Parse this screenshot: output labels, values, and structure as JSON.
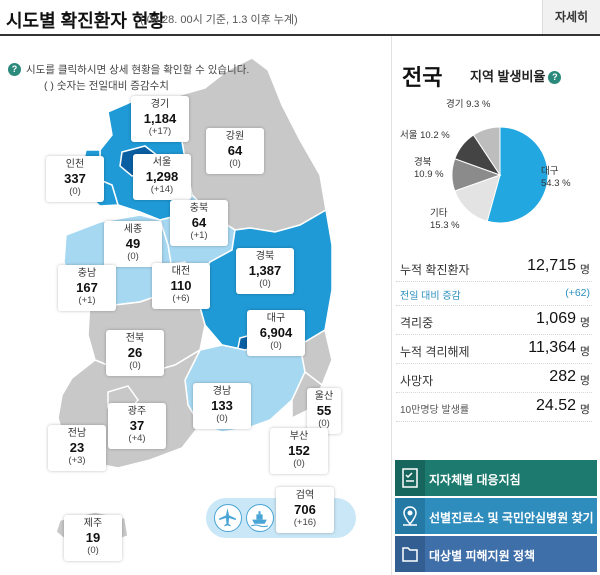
{
  "header": {
    "title": "시도별 확진환자 현황",
    "subtitle": "( 06.28. 00시 기준, 1.3 이후 누계)",
    "more_label": "자세히"
  },
  "notice": {
    "icon": "question-icon",
    "line1": "시도를 클릭하시면 상세 현황을 확인할 수 있습니다.",
    "line2": "( ) 숫자는 전일대비 증감수치"
  },
  "regions": [
    {
      "name": "경기",
      "count": "1,184",
      "delta": "(+17)"
    },
    {
      "name": "강원",
      "count": "64",
      "delta": "(0)"
    },
    {
      "name": "인천",
      "count": "337",
      "delta": "(0)"
    },
    {
      "name": "서울",
      "count": "1,298",
      "delta": "(+14)"
    },
    {
      "name": "충북",
      "count": "64",
      "delta": "(+1)"
    },
    {
      "name": "세종",
      "count": "49",
      "delta": "(0)"
    },
    {
      "name": "경북",
      "count": "1,387",
      "delta": "(0)"
    },
    {
      "name": "충남",
      "count": "167",
      "delta": "(+1)"
    },
    {
      "name": "대전",
      "count": "110",
      "delta": "(+6)"
    },
    {
      "name": "대구",
      "count": "6,904",
      "delta": "(0)"
    },
    {
      "name": "전북",
      "count": "26",
      "delta": "(0)"
    },
    {
      "name": "경남",
      "count": "133",
      "delta": "(0)"
    },
    {
      "name": "울산",
      "count": "55",
      "delta": "(0)"
    },
    {
      "name": "광주",
      "count": "37",
      "delta": "(+4)"
    },
    {
      "name": "부산",
      "count": "152",
      "delta": "(0)"
    },
    {
      "name": "전남",
      "count": "23",
      "delta": "(+3)"
    },
    {
      "name": "검역",
      "count": "706",
      "delta": "(+16)"
    },
    {
      "name": "제주",
      "count": "19",
      "delta": "(0)"
    }
  ],
  "quarantine_icons": [
    "airplane-icon",
    "ship-icon"
  ],
  "national": {
    "title": "전국",
    "ratio_title": "지역 발생비율",
    "ratio_icon": "question-icon"
  },
  "chart_data": {
    "type": "pie",
    "categories": [
      "대구",
      "기타",
      "경북",
      "서울",
      "경기"
    ],
    "values": [
      54.3,
      15.3,
      10.9,
      10.2,
      9.3
    ],
    "labels": [
      "대구\n54.3 %",
      "기타\n15.3 %",
      "경북\n10.9 %",
      "서울 10.2 %",
      "경기 9.3 %"
    ],
    "colors": [
      "#22a7e0",
      "#e3e3e3",
      "#8b8b8b",
      "#444444",
      "#bdbdbd"
    ]
  },
  "stats": [
    {
      "label": "누적 확진환자",
      "value": "12,715",
      "unit": "명"
    },
    {
      "label": "전일 대비 증감",
      "value": "(+62)",
      "unit": ""
    },
    {
      "label": "격리중",
      "value": "1,069",
      "unit": "명"
    },
    {
      "label": "누적 격리해제",
      "value": "11,364",
      "unit": "명"
    },
    {
      "label": "사망자",
      "value": "282",
      "unit": "명"
    },
    {
      "label": "10만명당 발생률",
      "value": "24.52",
      "unit": "명"
    }
  ],
  "buttons": [
    {
      "label": "지자체별 대응지침",
      "icon": "checklist-icon"
    },
    {
      "label": "선별진료소 및 국민안심병원 찾기",
      "icon": "map-pin-icon"
    },
    {
      "label": "대상별 피해지원 정책",
      "icon": "folder-icon"
    }
  ],
  "colors": {
    "dark_blue": "#0a5fa3",
    "mid_blue": "#1f9ad6",
    "light_blue": "#a7d8f2",
    "gray": "#c8c8c8",
    "teal": "#1d7a6f"
  }
}
